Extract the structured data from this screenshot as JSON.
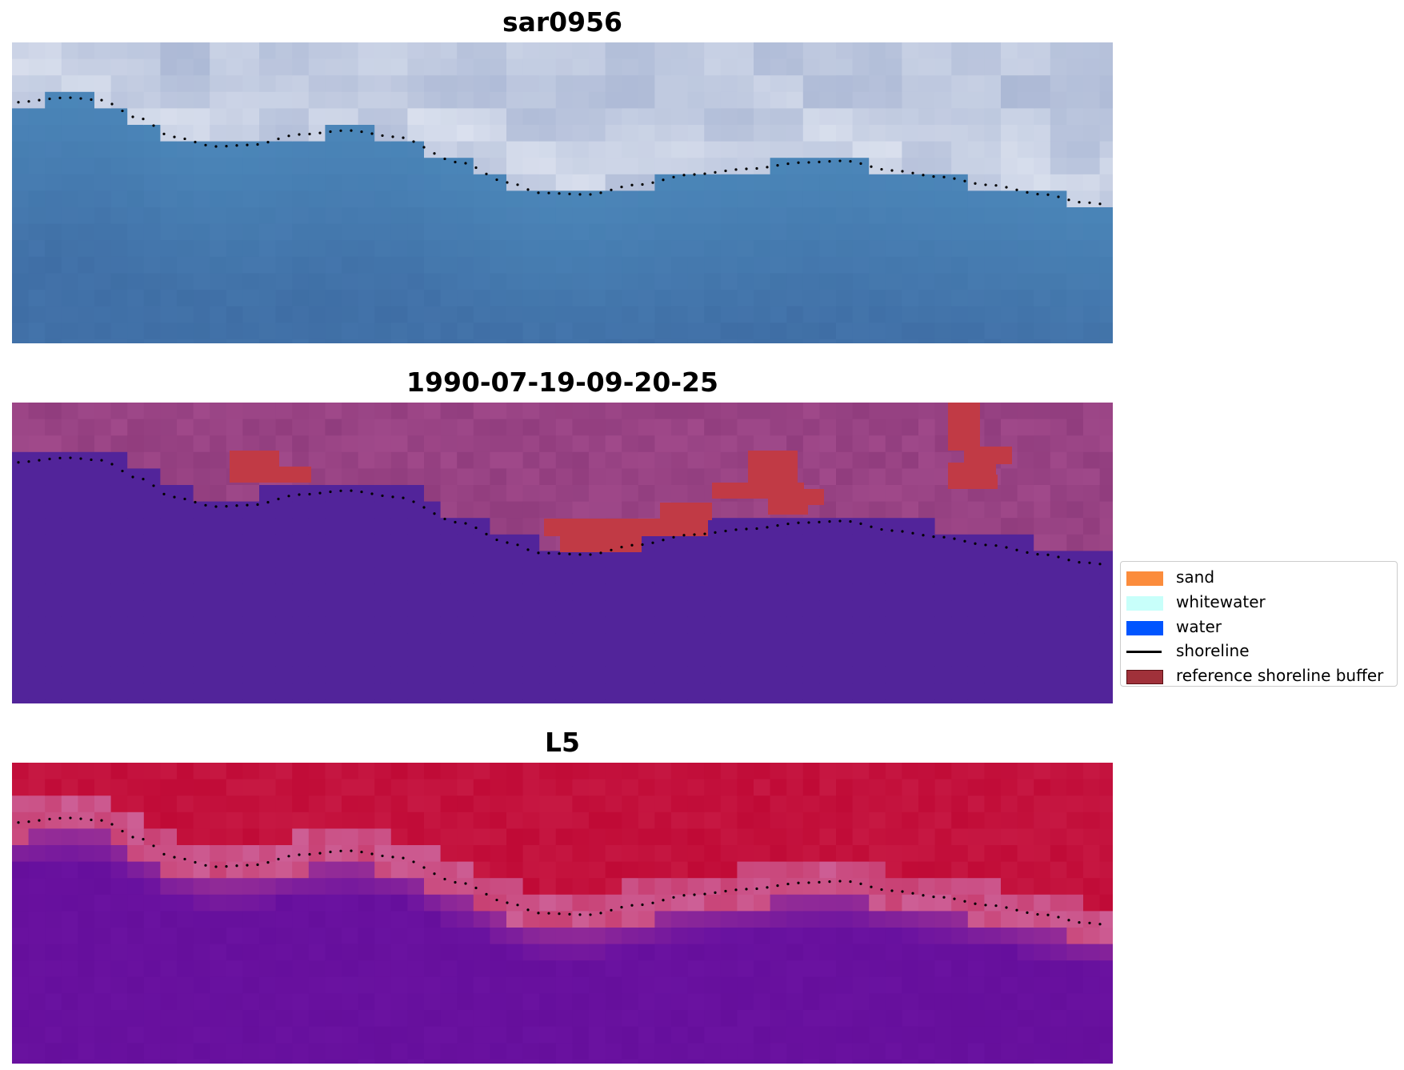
{
  "panels": [
    {
      "title": "sar0956",
      "kind": "sar"
    },
    {
      "title": "1990-07-19-09-20-25",
      "kind": "classified"
    },
    {
      "title": "L5",
      "kind": "index"
    }
  ],
  "legend": {
    "items": [
      {
        "label": "sand",
        "type": "patch",
        "color": "#fb8c3c",
        "edge": "#fb8c3c"
      },
      {
        "label": "whitewater",
        "type": "patch",
        "color": "#c8fffa",
        "edge": "#c8fffa"
      },
      {
        "label": "water",
        "type": "patch",
        "color": "#0055ff",
        "edge": "#0055ff"
      },
      {
        "label": "shoreline",
        "type": "line",
        "color": "#000000"
      },
      {
        "label": "reference shoreline buffer",
        "type": "patch",
        "color": "#a0313a",
        "edge": "#5a1015"
      }
    ]
  },
  "colors": {
    "sar_water": "#4a86b8",
    "sar_land": "#c7d0e4",
    "classified_water": "#52249a",
    "classified_land": "#a0498a",
    "buffer_overlay": "#c13a45",
    "index_water": "#6a12a0",
    "index_land": "#c00a36",
    "shoreline_dots": "#000000"
  }
}
